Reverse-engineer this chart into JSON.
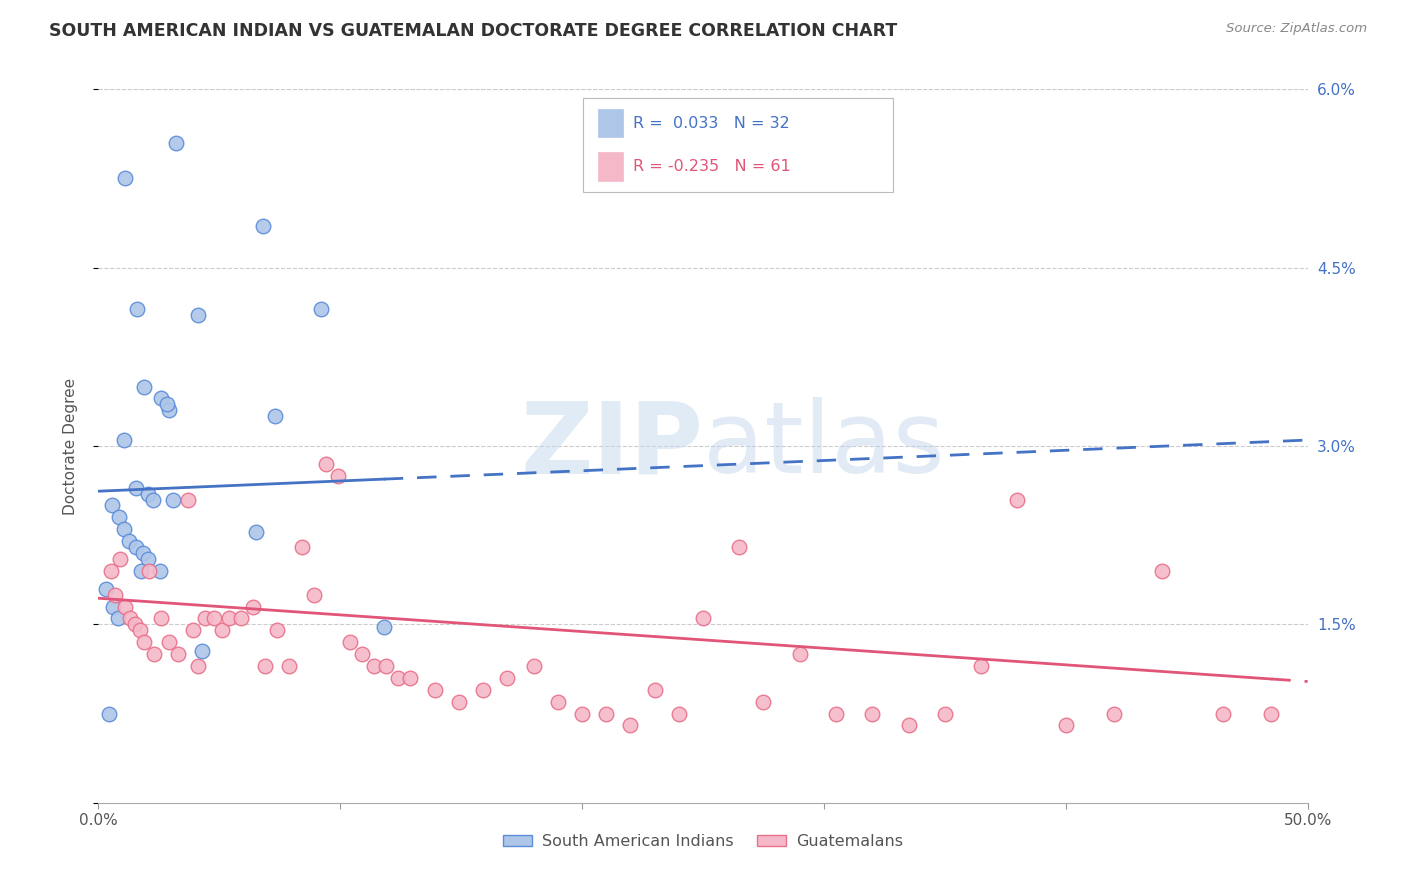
{
  "title": "SOUTH AMERICAN INDIAN VS GUATEMALAN DOCTORATE DEGREE CORRELATION CHART",
  "source": "Source: ZipAtlas.com",
  "ylabel": "Doctorate Degree",
  "xmin": 0.0,
  "xmax": 50.0,
  "ymin": 0.0,
  "ymax": 6.0,
  "blue_r": "0.033",
  "blue_n": "32",
  "pink_r": "-0.235",
  "pink_n": "61",
  "blue_color": "#aec6e8",
  "pink_color": "#f5b8c8",
  "blue_edge_color": "#5b8dd9",
  "pink_edge_color": "#e8708a",
  "blue_line_color": "#4472c4",
  "pink_line_color": "#e05578",
  "legend1": "South American Indians",
  "legend2": "Guatemalans",
  "watermark": "ZIPatlas",
  "blue_scatter_x": [
    1.1,
    3.2,
    6.8,
    9.2,
    1.6,
    4.1,
    1.9,
    2.6,
    2.9,
    1.05,
    1.55,
    2.05,
    2.25,
    3.1,
    0.55,
    0.85,
    1.05,
    1.25,
    1.55,
    1.85,
    2.05,
    2.55,
    0.32,
    0.62,
    0.82,
    0.42,
    4.3,
    11.8,
    7.3,
    2.85,
    6.5,
    1.75
  ],
  "blue_scatter_y": [
    5.25,
    5.55,
    4.85,
    4.15,
    4.15,
    4.1,
    3.5,
    3.4,
    3.3,
    3.05,
    2.65,
    2.6,
    2.55,
    2.55,
    2.5,
    2.4,
    2.3,
    2.2,
    2.15,
    2.1,
    2.05,
    1.95,
    1.8,
    1.65,
    1.55,
    0.75,
    1.28,
    1.48,
    3.25,
    3.35,
    2.28,
    1.95
  ],
  "pink_scatter_x": [
    0.5,
    0.7,
    0.9,
    1.1,
    1.3,
    1.5,
    1.7,
    1.9,
    2.1,
    2.3,
    2.6,
    2.9,
    3.3,
    3.7,
    3.9,
    4.1,
    4.4,
    4.8,
    5.1,
    5.4,
    5.9,
    6.4,
    6.9,
    7.4,
    7.9,
    8.4,
    8.9,
    9.4,
    9.9,
    10.4,
    10.9,
    11.4,
    11.9,
    12.4,
    12.9,
    13.9,
    14.9,
    15.9,
    16.9,
    18.0,
    19.0,
    20.0,
    21.0,
    22.0,
    23.0,
    24.0,
    25.0,
    26.5,
    27.5,
    29.0,
    30.5,
    32.0,
    33.5,
    35.0,
    36.5,
    38.0,
    40.0,
    42.0,
    44.0,
    46.5,
    48.5
  ],
  "pink_scatter_y": [
    1.95,
    1.75,
    2.05,
    1.65,
    1.55,
    1.5,
    1.45,
    1.35,
    1.95,
    1.25,
    1.55,
    1.35,
    1.25,
    2.55,
    1.45,
    1.15,
    1.55,
    1.55,
    1.45,
    1.55,
    1.55,
    1.65,
    1.15,
    1.45,
    1.15,
    2.15,
    1.75,
    2.85,
    2.75,
    1.35,
    1.25,
    1.15,
    1.15,
    1.05,
    1.05,
    0.95,
    0.85,
    0.95,
    1.05,
    1.15,
    0.85,
    0.75,
    0.75,
    0.65,
    0.95,
    0.75,
    1.55,
    2.15,
    0.85,
    1.25,
    0.75,
    0.75,
    0.65,
    0.75,
    1.15,
    2.55,
    0.65,
    0.75,
    1.95,
    0.75,
    0.75
  ],
  "xtick_vals": [
    0,
    10,
    20,
    30,
    40,
    50
  ],
  "ytick_vals": [
    0.0,
    1.5,
    3.0,
    4.5,
    6.0
  ],
  "ytick_labels": [
    "",
    "1.5%",
    "3.0%",
    "4.5%",
    "6.0%"
  ]
}
